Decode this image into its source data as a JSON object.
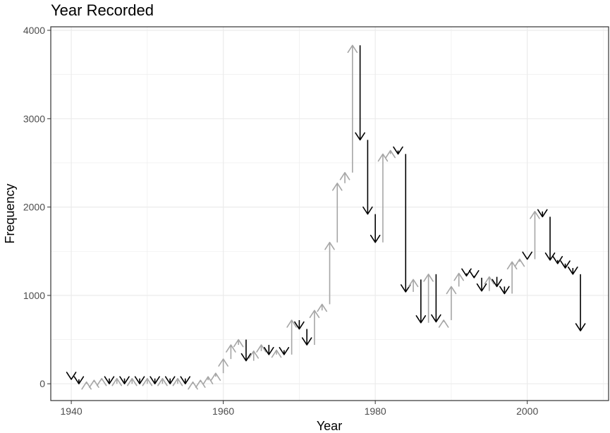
{
  "chart_data": {
    "type": "line",
    "title": "Year Recorded",
    "xlabel": "Year",
    "ylabel": "Frequency",
    "xlim": [
      1937.3,
      2010.7
    ],
    "ylim": [
      -190,
      4040
    ],
    "x_ticks": [
      1940,
      1960,
      1980,
      2000
    ],
    "y_ticks": [
      0,
      1000,
      2000,
      3000,
      4000
    ],
    "grid": true,
    "legend": "none",
    "mark_style": "arrows between consecutive years; grey up-arrow = increase, black down-arrow = decrease",
    "colors": {
      "increase": "#a6a6a6",
      "decrease": "#000000",
      "grid": "#ebebeb",
      "panel_border": "#333333"
    },
    "series": [
      {
        "x": [
          1940,
          1941,
          1942,
          1943,
          1944,
          1945,
          1946,
          1947,
          1948,
          1949,
          1950,
          1951,
          1952,
          1953,
          1954,
          1955,
          1956,
          1957,
          1958,
          1959,
          1960,
          1961,
          1962,
          1963,
          1964,
          1965,
          1966,
          1967,
          1968,
          1969,
          1970,
          1971,
          1972,
          1973,
          1974,
          1975,
          1976,
          1977,
          1978,
          1979,
          1980,
          1981,
          1982,
          1983,
          1984,
          1985,
          1986,
          1987,
          1988,
          1989,
          1990,
          1991,
          1992,
          1993,
          1994,
          1995,
          1996,
          1997,
          1998,
          1999,
          2000,
          2001,
          2002,
          2003,
          2004,
          2005,
          2006,
          2007
        ],
        "y": [
          50,
          0,
          20,
          40,
          60,
          0,
          60,
          0,
          60,
          0,
          60,
          0,
          60,
          0,
          60,
          0,
          20,
          40,
          80,
          120,
          280,
          440,
          500,
          260,
          370,
          440,
          330,
          380,
          330,
          720,
          620,
          440,
          830,
          900,
          1600,
          2270,
          2390,
          3830,
          2760,
          1920,
          1600,
          2600,
          2640,
          2600,
          1040,
          1180,
          690,
          1240,
          700,
          720,
          1100,
          1250,
          1220,
          1200,
          1050,
          1210,
          1100,
          1020,
          1380,
          1410,
          1410,
          1950,
          1890,
          1400,
          1360,
          1310,
          1240,
          600
        ]
      }
    ]
  }
}
